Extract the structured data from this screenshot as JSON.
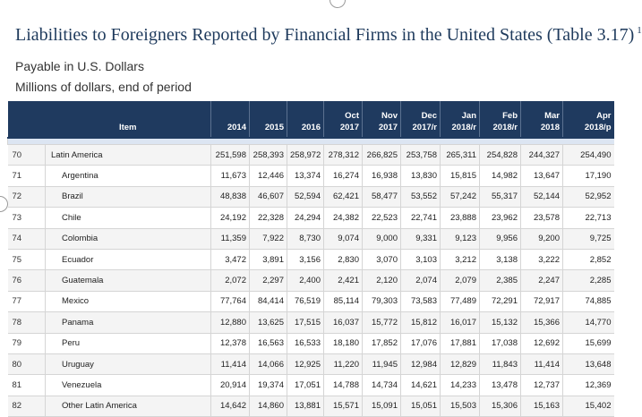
{
  "title": "Liabilities to Foreigners Reported by Financial Firms in the United States (Table 3.17)",
  "footnote_mark": "1",
  "subtitle1": "Payable in U.S. Dollars",
  "subtitle2": "Millions of dollars, end of period",
  "columns": [
    {
      "line1": "",
      "line2": "Item"
    },
    {
      "line1": "",
      "line2": "2014"
    },
    {
      "line1": "",
      "line2": "2015"
    },
    {
      "line1": "",
      "line2": "2016"
    },
    {
      "line1": "",
      "line2": "Oct 2017"
    },
    {
      "line1": "",
      "line2": "Nov 2017"
    },
    {
      "line1": "Dec",
      "line2": "2017/r"
    },
    {
      "line1": "Jan",
      "line2": "2018/r"
    },
    {
      "line1": "Feb",
      "line2": "2018/r"
    },
    {
      "line1": "",
      "line2": "Mar 2018"
    },
    {
      "line1": "Apr",
      "line2": "2018/p"
    }
  ],
  "rows": [
    {
      "num": "70",
      "item": "Latin America",
      "values": [
        "251,598",
        "258,393",
        "258,972",
        "278,312",
        "266,825",
        "253,758",
        "265,311",
        "254,828",
        "244,327",
        "254,490"
      ]
    },
    {
      "num": "71",
      "item": "Argentina",
      "values": [
        "11,673",
        "12,446",
        "13,374",
        "16,274",
        "16,938",
        "13,830",
        "15,815",
        "14,982",
        "13,647",
        "17,190"
      ]
    },
    {
      "num": "72",
      "item": "Brazil",
      "values": [
        "48,838",
        "46,607",
        "52,594",
        "62,421",
        "58,477",
        "53,552",
        "57,242",
        "55,317",
        "52,144",
        "52,952"
      ]
    },
    {
      "num": "73",
      "item": "Chile",
      "values": [
        "24,192",
        "22,328",
        "24,294",
        "24,382",
        "22,523",
        "22,741",
        "23,888",
        "23,962",
        "23,578",
        "22,713"
      ]
    },
    {
      "num": "74",
      "item": "Colombia",
      "values": [
        "11,359",
        "7,922",
        "8,730",
        "9,074",
        "9,000",
        "9,331",
        "9,123",
        "9,956",
        "9,200",
        "9,725"
      ]
    },
    {
      "num": "75",
      "item": "Ecuador",
      "values": [
        "3,472",
        "3,891",
        "3,156",
        "2,830",
        "3,070",
        "3,103",
        "3,212",
        "3,138",
        "3,222",
        "2,852"
      ]
    },
    {
      "num": "76",
      "item": "Guatemala",
      "values": [
        "2,072",
        "2,297",
        "2,400",
        "2,421",
        "2,120",
        "2,074",
        "2,079",
        "2,385",
        "2,247",
        "2,285"
      ]
    },
    {
      "num": "77",
      "item": "Mexico",
      "values": [
        "77,764",
        "84,414",
        "76,519",
        "85,114",
        "79,303",
        "73,583",
        "77,489",
        "72,291",
        "72,917",
        "74,885"
      ]
    },
    {
      "num": "78",
      "item": "Panama",
      "values": [
        "12,880",
        "13,625",
        "17,515",
        "16,037",
        "15,772",
        "15,812",
        "16,017",
        "15,132",
        "15,366",
        "14,770"
      ]
    },
    {
      "num": "79",
      "item": "Peru",
      "values": [
        "12,378",
        "16,563",
        "16,533",
        "18,180",
        "17,852",
        "17,076",
        "17,881",
        "17,038",
        "12,692",
        "15,699"
      ]
    },
    {
      "num": "80",
      "item": "Uruguay",
      "values": [
        "11,414",
        "14,066",
        "12,925",
        "11,220",
        "11,945",
        "12,984",
        "12,829",
        "11,843",
        "11,414",
        "13,648"
      ]
    },
    {
      "num": "81",
      "item": "Venezuela",
      "values": [
        "20,914",
        "19,374",
        "17,051",
        "14,788",
        "14,734",
        "14,621",
        "14,233",
        "13,478",
        "12,737",
        "12,369"
      ]
    },
    {
      "num": "82",
      "item": "Other Latin America",
      "values": [
        "14,642",
        "14,860",
        "13,881",
        "15,571",
        "15,091",
        "15,051",
        "15,503",
        "15,306",
        "15,163",
        "15,402"
      ]
    }
  ]
}
